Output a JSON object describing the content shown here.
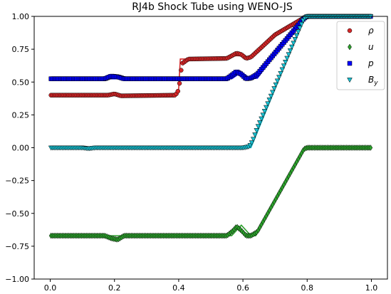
{
  "chart_data": {
    "type": "scatter",
    "title": "RJ4b Shock Tube using WENO-JS",
    "xlabel": "",
    "ylabel": "",
    "xlim": [
      -0.05,
      1.05
    ],
    "ylim": [
      -1.0,
      1.0
    ],
    "xticks": [
      0.0,
      0.2,
      0.4,
      0.6,
      0.8,
      1.0
    ],
    "xtick_labels": [
      "0.0",
      "0.2",
      "0.4",
      "0.6",
      "0.8",
      "1.0"
    ],
    "yticks": [
      -1.0,
      -0.75,
      -0.5,
      -0.25,
      0.0,
      0.25,
      0.5,
      0.75,
      1.0
    ],
    "ytick_labels": [
      "−1.00",
      "−0.75",
      "−0.50",
      "−0.25",
      "0.00",
      "0.25",
      "0.50",
      "0.75",
      "1.00"
    ],
    "grid": false,
    "legend_position": "top-right",
    "series": [
      {
        "name": "ρ",
        "marker": "circle",
        "color": "#d62728",
        "reference": {
          "x": [
            0.0,
            0.395,
            0.4,
            0.405,
            0.545,
            0.565,
            0.595,
            0.615,
            0.7,
            0.8,
            1.0
          ],
          "y": [
            0.4,
            0.4,
            0.45,
            0.675,
            0.675,
            0.7,
            0.7,
            0.67,
            0.85,
            1.0,
            1.0
          ]
        },
        "numerical": {
          "x": [
            0.0,
            0.18,
            0.2,
            0.22,
            0.39,
            0.4,
            0.41,
            0.43,
            0.55,
            0.565,
            0.58,
            0.595,
            0.61,
            0.625,
            0.7,
            0.78,
            0.8,
            1.0
          ],
          "y": [
            0.4,
            0.4,
            0.41,
            0.395,
            0.4,
            0.44,
            0.64,
            0.675,
            0.68,
            0.7,
            0.72,
            0.71,
            0.68,
            0.69,
            0.86,
            0.975,
            1.0,
            1.0
          ]
        }
      },
      {
        "name": "u",
        "marker": "diamond",
        "color": "#2ca02c",
        "reference": {
          "x": [
            0.0,
            0.545,
            0.565,
            0.595,
            0.625,
            0.64,
            0.79,
            0.8,
            1.0
          ],
          "y": [
            -0.67,
            -0.67,
            -0.67,
            -0.59,
            -0.67,
            -0.67,
            -0.01,
            0.0,
            0.0
          ]
        },
        "numerical": {
          "x": [
            0.0,
            0.17,
            0.19,
            0.21,
            0.23,
            0.55,
            0.57,
            0.58,
            0.595,
            0.61,
            0.625,
            0.645,
            0.79,
            0.8,
            1.0
          ],
          "y": [
            -0.67,
            -0.67,
            -0.69,
            -0.7,
            -0.67,
            -0.67,
            -0.63,
            -0.6,
            -0.63,
            -0.67,
            -0.67,
            -0.64,
            -0.01,
            0.0,
            0.0
          ]
        }
      },
      {
        "name": "p",
        "marker": "square",
        "color": "#0000ff",
        "reference": {
          "x": [
            0.0,
            0.545,
            0.565,
            0.595,
            0.625,
            0.645,
            0.79,
            0.8,
            1.0
          ],
          "y": [
            0.525,
            0.525,
            0.525,
            0.575,
            0.525,
            0.53,
            1.0,
            1.0,
            1.0
          ]
        },
        "numerical": {
          "x": [
            0.0,
            0.17,
            0.19,
            0.21,
            0.23,
            0.55,
            0.57,
            0.58,
            0.595,
            0.61,
            0.625,
            0.645,
            0.79,
            0.8,
            1.0
          ],
          "y": [
            0.525,
            0.525,
            0.545,
            0.54,
            0.525,
            0.525,
            0.56,
            0.58,
            0.56,
            0.525,
            0.53,
            0.56,
            0.985,
            1.0,
            1.0
          ]
        }
      },
      {
        "name": "B_y",
        "marker": "triangle-down",
        "color": "#17becf",
        "reference": {
          "x": [
            0.0,
            0.625,
            0.63,
            0.79,
            0.8,
            1.0
          ],
          "y": [
            0.0,
            0.0,
            0.03,
            0.985,
            1.0,
            1.0
          ]
        },
        "numerical": {
          "x": [
            0.0,
            0.1,
            0.12,
            0.14,
            0.6,
            0.61,
            0.62,
            0.63,
            0.645,
            0.79,
            0.8,
            1.0
          ],
          "y": [
            0.0,
            0.0,
            -0.006,
            0.0,
            0.0,
            0.004,
            0.01,
            0.05,
            0.15,
            0.985,
            1.0,
            1.0
          ]
        }
      }
    ]
  }
}
